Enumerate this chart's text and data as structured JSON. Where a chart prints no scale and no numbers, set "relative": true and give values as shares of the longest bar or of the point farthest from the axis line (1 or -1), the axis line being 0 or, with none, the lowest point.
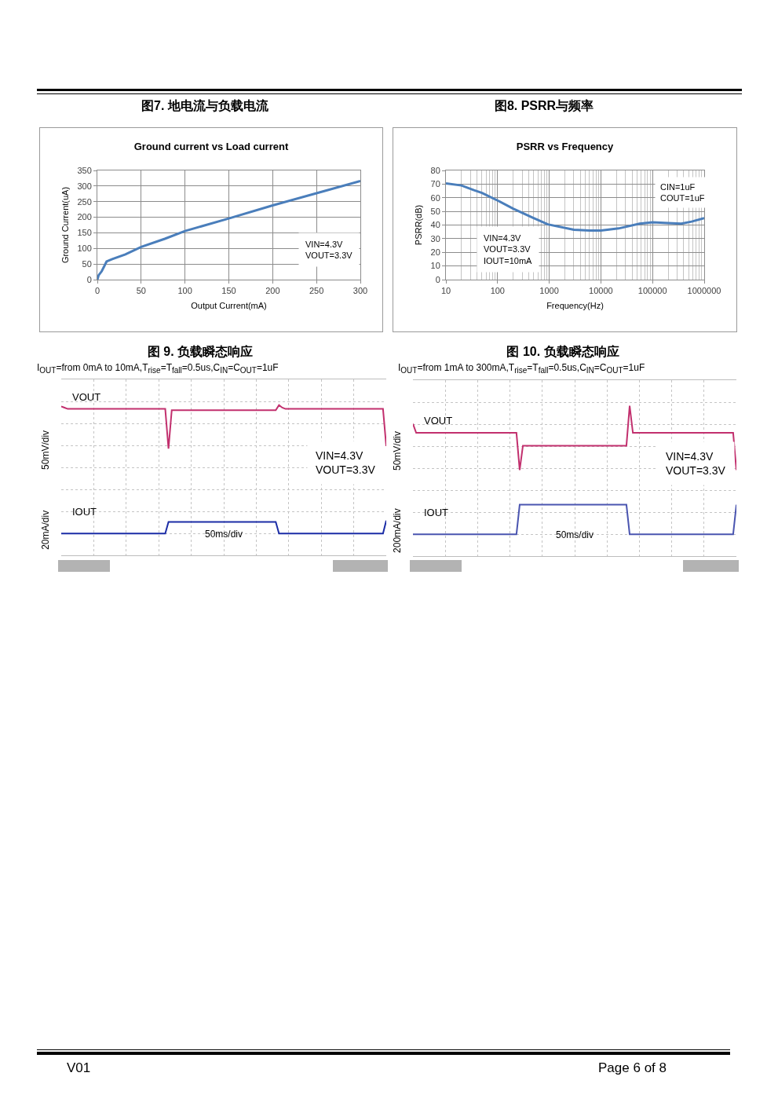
{
  "chart_data": [
    {
      "type": "line",
      "title": "图7. 地电流与负载电流",
      "subtitle": "Ground current vs Load current",
      "xlabel": "Output Current(mA)",
      "ylabel": "Ground Current(uA)",
      "x": [
        0,
        1.5,
        5,
        7.5,
        10.5,
        17,
        32,
        50,
        77,
        100,
        150,
        200,
        250,
        300
      ],
      "values": [
        0,
        14,
        27,
        41,
        58,
        66,
        81,
        105,
        131,
        156,
        196,
        238,
        277,
        316
      ],
      "color": "#4a7ebb",
      "xlim": [
        0,
        300
      ],
      "xticks": [
        0,
        50,
        100,
        150,
        200,
        250,
        300
      ],
      "ylim": [
        0,
        350
      ],
      "yticks": [
        0,
        50,
        100,
        150,
        200,
        250,
        300,
        350
      ],
      "grid": true,
      "annotations": [
        "VIN=4.3V\nVOUT=3.3V"
      ]
    },
    {
      "type": "line",
      "title": "图8. PSRR与频率",
      "subtitle": "PSRR vs Frequency",
      "xlabel": "Frequency(Hz)",
      "ylabel": "PSRR(dB)",
      "x": [
        10,
        20,
        35,
        50,
        100,
        200,
        470,
        940,
        3000,
        6000,
        10000,
        22000,
        56000,
        100000,
        200000,
        360000,
        570000,
        1000000
      ],
      "values": [
        70.5,
        69,
        65.5,
        63.5,
        58,
        52,
        45.5,
        40.5,
        36.5,
        36,
        36,
        37.5,
        41,
        42,
        41.5,
        41,
        42.5,
        45
      ],
      "color": "#4a7ebb",
      "log": "x",
      "xlim": [
        10,
        1000000
      ],
      "xticks": [
        10,
        100,
        1000,
        10000,
        100000,
        1000000
      ],
      "ylim": [
        0,
        80
      ],
      "yticks": [
        0,
        10,
        20,
        30,
        40,
        50,
        60,
        70,
        80
      ],
      "grid": true,
      "annotations": [
        "CIN=1uF\nCOUT=1uF",
        "VIN=4.3V\nVOUT=3.3V\nIOUT=10mA"
      ]
    },
    {
      "type": "line",
      "title": "图 9. 负载瞬态响应",
      "subtitle": "I$_{OUT}$=from 0mA to 10mA,T$_{rise}$=T$_{fall}$=0.5us,C$_{IN}$=C$_{OUT}$=1uF",
      "relative": true,
      "grid": true,
      "categories": [
        null,
        null,
        null,
        null,
        null,
        null,
        null,
        null,
        null,
        null,
        null,
        null,
        null,
        null,
        null,
        null,
        null,
        null,
        null,
        null,
        null,
        null,
        null,
        null,
        null,
        null,
        null,
        null,
        null,
        null,
        null,
        null,
        null,
        null,
        null,
        null,
        null,
        null,
        null,
        null,
        null,
        null,
        null,
        null,
        null,
        null,
        null,
        null,
        null,
        null,
        null,
        null,
        null,
        null,
        null,
        null,
        null,
        null,
        null,
        null,
        null,
        null,
        null,
        null,
        null,
        null,
        null,
        null,
        null,
        null,
        null,
        null,
        null,
        null,
        null,
        null,
        null,
        null,
        null,
        null,
        null,
        null,
        null,
        null,
        null,
        null,
        null,
        null,
        null,
        null,
        null,
        null,
        null,
        null,
        null,
        null,
        null,
        null,
        null,
        null,
        null
      ],
      "series": [
        {
          "name": "VOUT",
          "color": "#c2306e",
          "values": [
            0.99,
            0.98,
            0.97,
            0.97,
            0.97,
            0.97,
            0.97,
            0.97,
            0.97,
            0.97,
            0.97,
            0.97,
            0.97,
            0.97,
            0.97,
            0.97,
            0.97,
            0.97,
            0.97,
            0.97,
            0.97,
            0.97,
            0.97,
            0.97,
            0.97,
            0.97,
            0.97,
            0.97,
            0.97,
            0.97,
            0.97,
            0.97,
            0.97,
            0.66,
            0.96,
            0.96,
            0.96,
            0.96,
            0.96,
            0.96,
            0.96,
            0.96,
            0.96,
            0.96,
            0.96,
            0.96,
            0.96,
            0.96,
            0.96,
            0.96,
            0.96,
            0.96,
            0.96,
            0.96,
            0.96,
            0.96,
            0.96,
            0.96,
            0.96,
            0.96,
            0.96,
            0.96,
            0.96,
            0.96,
            0.96,
            0.96,
            0.96,
            1,
            0.98,
            0.97,
            0.97,
            0.97,
            0.97,
            0.97,
            0.97,
            0.97,
            0.97,
            0.97,
            0.97,
            0.97,
            0.97,
            0.97,
            0.97,
            0.97,
            0.97,
            0.97,
            0.97,
            0.97,
            0.97,
            0.97,
            0.97,
            0.97,
            0.97,
            0.97,
            0.97,
            0.97,
            0.97,
            0.97,
            0.97,
            0.97,
            0.68
          ]
        },
        {
          "name": "IOUT",
          "color": "#1b2ca6",
          "values": [
            0,
            0,
            0,
            0,
            0,
            0,
            0,
            0,
            0,
            0,
            0,
            0,
            0,
            0,
            0,
            0,
            0,
            0,
            0,
            0,
            0,
            0,
            0,
            0,
            0,
            0,
            0,
            0,
            0,
            0,
            0,
            0,
            0,
            0.09,
            0.09,
            0.09,
            0.09,
            0.09,
            0.09,
            0.09,
            0.09,
            0.09,
            0.09,
            0.09,
            0.09,
            0.09,
            0.09,
            0.09,
            0.09,
            0.09,
            0.09,
            0.09,
            0.09,
            0.09,
            0.09,
            0.09,
            0.09,
            0.09,
            0.09,
            0.09,
            0.09,
            0.09,
            0.09,
            0.09,
            0.09,
            0.09,
            0.09,
            0,
            0,
            0,
            0,
            0,
            0,
            0,
            0,
            0,
            0,
            0,
            0,
            0,
            0,
            0,
            0,
            0,
            0,
            0,
            0,
            0,
            0,
            0,
            0,
            0,
            0,
            0,
            0,
            0,
            0,
            0,
            0,
            0,
            0.1
          ]
        }
      ],
      "annotations": [
        "VIN=4.3V\nVOUT=3.3V",
        "50ms/div",
        "50mV/div",
        "20mA/div"
      ]
    },
    {
      "type": "line",
      "title": "图 10. 负载瞬态响应",
      "subtitle": "I$_{OUT}$=from 1mA to 300mA,T$_{rise}$=T$_{fall}$=0.5us,C$_{IN}$=C$_{OUT}$=1uF",
      "relative": true,
      "grid": true,
      "categories": [
        null,
        null,
        null,
        null,
        null,
        null,
        null,
        null,
        null,
        null,
        null,
        null,
        null,
        null,
        null,
        null,
        null,
        null,
        null,
        null,
        null,
        null,
        null,
        null,
        null,
        null,
        null,
        null,
        null,
        null,
        null,
        null,
        null,
        null,
        null,
        null,
        null,
        null,
        null,
        null,
        null,
        null,
        null,
        null,
        null,
        null,
        null,
        null,
        null,
        null,
        null,
        null,
        null,
        null,
        null,
        null,
        null,
        null,
        null,
        null,
        null,
        null,
        null,
        null,
        null,
        null,
        null,
        null,
        null,
        null,
        null,
        null,
        null,
        null,
        null,
        null,
        null,
        null,
        null,
        null,
        null,
        null,
        null,
        null,
        null,
        null,
        null,
        null,
        null,
        null,
        null,
        null,
        null,
        null,
        null,
        null,
        null,
        null,
        null,
        null,
        null
      ],
      "series": [
        {
          "name": "VOUT",
          "color": "#c2306e",
          "values": [
            0.86,
            0.79,
            0.79,
            0.79,
            0.79,
            0.79,
            0.79,
            0.79,
            0.79,
            0.79,
            0.79,
            0.79,
            0.79,
            0.79,
            0.79,
            0.79,
            0.79,
            0.79,
            0.79,
            0.79,
            0.79,
            0.79,
            0.79,
            0.79,
            0.79,
            0.79,
            0.79,
            0.79,
            0.79,
            0.79,
            0.79,
            0.79,
            0.79,
            0.5,
            0.69,
            0.69,
            0.69,
            0.69,
            0.69,
            0.69,
            0.69,
            0.69,
            0.69,
            0.69,
            0.69,
            0.69,
            0.69,
            0.69,
            0.69,
            0.69,
            0.69,
            0.69,
            0.69,
            0.69,
            0.69,
            0.69,
            0.69,
            0.69,
            0.69,
            0.69,
            0.69,
            0.69,
            0.69,
            0.69,
            0.69,
            0.69,
            0.69,
            1,
            0.79,
            0.79,
            0.79,
            0.79,
            0.79,
            0.79,
            0.79,
            0.79,
            0.79,
            0.79,
            0.79,
            0.79,
            0.79,
            0.79,
            0.79,
            0.79,
            0.79,
            0.79,
            0.79,
            0.79,
            0.79,
            0.79,
            0.79,
            0.79,
            0.79,
            0.79,
            0.79,
            0.79,
            0.79,
            0.79,
            0.79,
            0.79,
            0.5
          ]
        },
        {
          "name": "IOUT",
          "color": "#4a55b0",
          "values": [
            0,
            0,
            0,
            0,
            0,
            0,
            0,
            0,
            0,
            0,
            0,
            0,
            0,
            0,
            0,
            0,
            0,
            0,
            0,
            0,
            0,
            0,
            0,
            0,
            0,
            0,
            0,
            0,
            0,
            0,
            0,
            0,
            0,
            0.23,
            0.23,
            0.23,
            0.23,
            0.23,
            0.23,
            0.23,
            0.23,
            0.23,
            0.23,
            0.23,
            0.23,
            0.23,
            0.23,
            0.23,
            0.23,
            0.23,
            0.23,
            0.23,
            0.23,
            0.23,
            0.23,
            0.23,
            0.23,
            0.23,
            0.23,
            0.23,
            0.23,
            0.23,
            0.23,
            0.23,
            0.23,
            0.23,
            0.23,
            0,
            0,
            0,
            0,
            0,
            0,
            0,
            0,
            0,
            0,
            0,
            0,
            0,
            0,
            0,
            0,
            0,
            0,
            0,
            0,
            0,
            0,
            0,
            0,
            0,
            0,
            0,
            0,
            0,
            0,
            0,
            0,
            0,
            0.23
          ]
        }
      ],
      "annotations": [
        "VIN=4.3V\nVOUT=3.3V",
        "50ms/div",
        "50mV/div",
        "200mA/div"
      ]
    },
    {
      "type": "other",
      "annotations": [
        "V01",
        "Page 6 of 8"
      ]
    }
  ]
}
